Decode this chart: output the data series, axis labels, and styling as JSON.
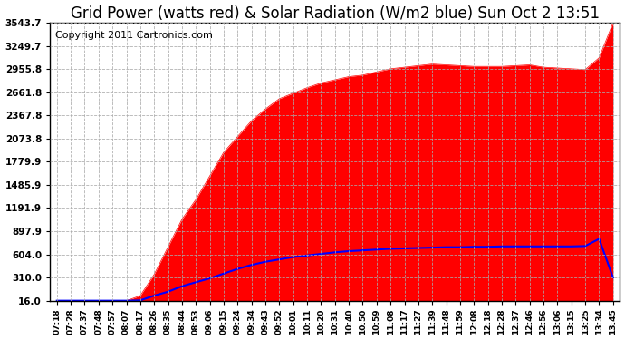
{
  "title": "Grid Power (watts red) & Solar Radiation (W/m2 blue) Sun Oct 2 13:51",
  "copyright": "Copyright 2011 Cartronics.com",
  "yticks": [
    16.0,
    310.0,
    604.0,
    897.9,
    1191.9,
    1485.9,
    1779.9,
    2073.8,
    2367.8,
    2661.8,
    2955.8,
    3249.7,
    3543.7
  ],
  "ymin": 16.0,
  "ymax": 3543.7,
  "xtick_labels": [
    "07:18",
    "07:28",
    "07:37",
    "07:48",
    "07:57",
    "08:07",
    "08:17",
    "08:26",
    "08:35",
    "08:44",
    "08:53",
    "09:06",
    "09:15",
    "09:24",
    "09:34",
    "09:43",
    "09:52",
    "10:01",
    "10:11",
    "10:20",
    "10:31",
    "10:40",
    "10:50",
    "10:59",
    "11:08",
    "11:17",
    "11:27",
    "11:39",
    "11:48",
    "11:59",
    "12:08",
    "12:18",
    "12:28",
    "12:37",
    "12:46",
    "12:56",
    "13:06",
    "13:15",
    "13:25",
    "13:34",
    "13:45"
  ],
  "red_values": [
    16,
    16,
    16,
    16,
    16,
    16,
    80,
    350,
    700,
    1050,
    1300,
    1600,
    1900,
    2100,
    2300,
    2450,
    2580,
    2650,
    2720,
    2780,
    2820,
    2860,
    2880,
    2920,
    2960,
    2980,
    3000,
    3020,
    3010,
    3000,
    2990,
    2990,
    2990,
    3000,
    3010,
    2980,
    2970,
    2960,
    2950,
    3100,
    3543
  ],
  "blue_values": [
    16,
    16,
    16,
    16,
    16,
    16,
    20,
    80,
    130,
    200,
    250,
    300,
    360,
    420,
    470,
    510,
    540,
    570,
    590,
    610,
    630,
    645,
    655,
    665,
    675,
    680,
    685,
    690,
    695,
    695,
    700,
    700,
    705,
    705,
    705,
    705,
    705,
    705,
    710,
    800,
    310
  ],
  "background_color": "#ffffff",
  "plot_bg_color": "#ffffff",
  "grid_color": "#aaaaaa",
  "title_color": "#000000",
  "red_fill_color": "#ff0000",
  "blue_line_color": "#0000ff",
  "title_fontsize": 12,
  "copyright_fontsize": 8
}
